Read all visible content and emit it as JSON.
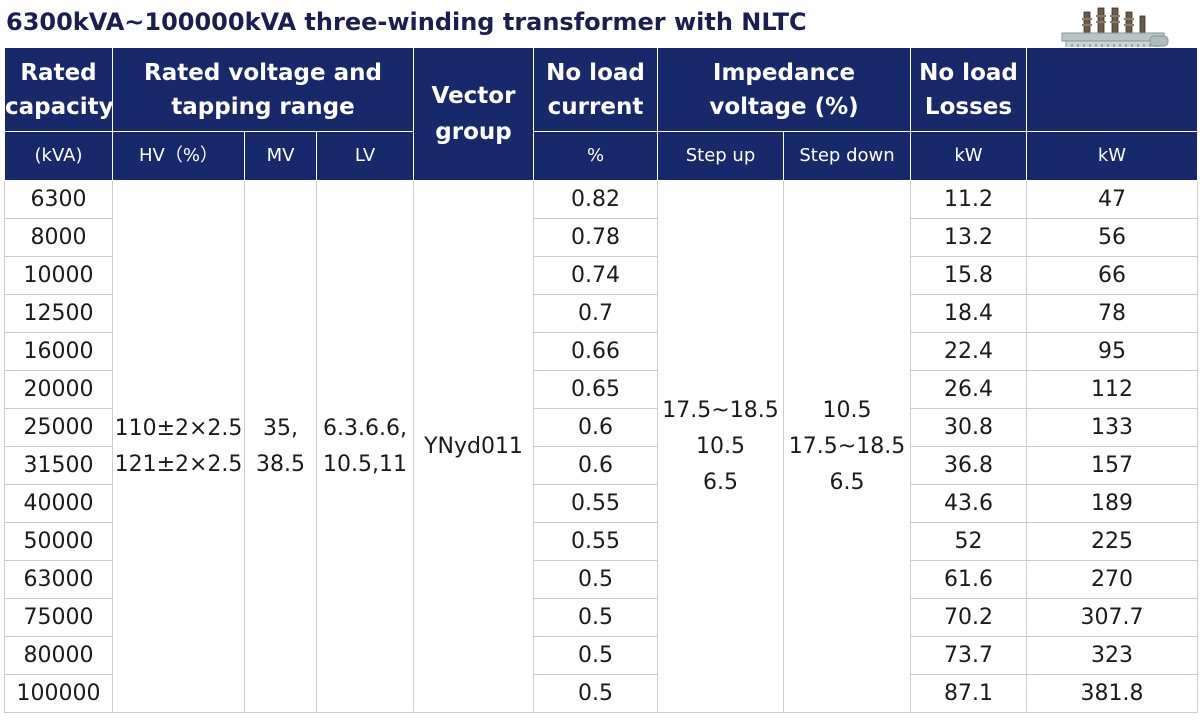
{
  "title": "6300kVA~100000kVA three-winding transformer with NLTC",
  "header": {
    "rated_capacity": [
      "Rated",
      "capacity"
    ],
    "rated_voltage": [
      "Rated voltage and",
      "tapping range"
    ],
    "vector_group": [
      "Vector",
      "group"
    ],
    "no_load_current": [
      "No load",
      "current"
    ],
    "impedance_voltage": [
      "Impedance",
      "voltage  (%)"
    ],
    "no_load_losses": [
      "No load",
      "Losses"
    ]
  },
  "subheader": {
    "capacity_unit": "(kVA)",
    "hv": "HV（%）",
    "mv": "MV",
    "lv": "LV",
    "current_unit": "%",
    "step_up": "Step up",
    "step_down": "Step down",
    "nll_unit": "kW",
    "load_unit": "kW"
  },
  "merged": {
    "hv": [
      "110±2×2.5",
      "121±2×2.5"
    ],
    "mv": [
      "35,",
      "38.5"
    ],
    "lv": [
      "6.3.6.6,",
      "10.5,11"
    ],
    "vector_group": "YNyd011",
    "step_up": [
      "17.5~18.5",
      "10.5",
      "6.5"
    ],
    "step_down": [
      "10.5",
      "17.5~18.5",
      "6.5"
    ]
  },
  "rows": [
    {
      "capacity": "6300",
      "current": "0.82",
      "no_load_loss": "11.2",
      "load_loss": "47"
    },
    {
      "capacity": "8000",
      "current": "0.78",
      "no_load_loss": "13.2",
      "load_loss": "56"
    },
    {
      "capacity": "10000",
      "current": "0.74",
      "no_load_loss": "15.8",
      "load_loss": "66"
    },
    {
      "capacity": "12500",
      "current": "0.7",
      "no_load_loss": "18.4",
      "load_loss": "78"
    },
    {
      "capacity": "16000",
      "current": "0.66",
      "no_load_loss": "22.4",
      "load_loss": "95"
    },
    {
      "capacity": "20000",
      "current": "0.65",
      "no_load_loss": "26.4",
      "load_loss": "112"
    },
    {
      "capacity": "25000",
      "current": "0.6",
      "no_load_loss": "30.8",
      "load_loss": "133"
    },
    {
      "capacity": "31500",
      "current": "0.6",
      "no_load_loss": "36.8",
      "load_loss": "157"
    },
    {
      "capacity": "40000",
      "current": "0.55",
      "no_load_loss": "43.6",
      "load_loss": "189"
    },
    {
      "capacity": "50000",
      "current": "0.55",
      "no_load_loss": "52",
      "load_loss": "225"
    },
    {
      "capacity": "63000",
      "current": "0.5",
      "no_load_loss": "61.6",
      "load_loss": "270"
    },
    {
      "capacity": "75000",
      "current": "0.5",
      "no_load_loss": "70.2",
      "load_loss": "307.7"
    },
    {
      "capacity": "80000",
      "current": "0.5",
      "no_load_loss": "73.7",
      "load_loss": "323"
    },
    {
      "capacity": "100000",
      "current": "0.5",
      "no_load_loss": "87.1",
      "load_loss": "381.8"
    }
  ],
  "colors": {
    "header_bg": "#17296b",
    "title": "#1a1f52",
    "grid": "#c9ccd6"
  },
  "icons": {
    "transformer": "transformer-icon"
  }
}
